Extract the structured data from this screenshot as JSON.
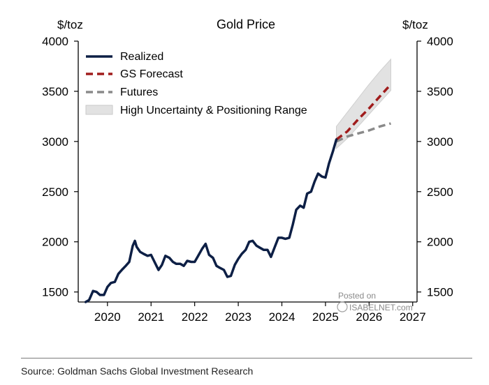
{
  "chart_data": {
    "type": "line",
    "title": "Gold Price",
    "ylabel_left": "$/toz",
    "ylabel_right": "$/toz",
    "ylim": [
      1400,
      4000
    ],
    "yticks": [
      1500,
      2000,
      2500,
      3000,
      3500,
      4000
    ],
    "xlim": [
      2019.33,
      2027.1
    ],
    "xticks": [
      2020,
      2021,
      2022,
      2023,
      2024,
      2025,
      2026,
      2027
    ],
    "xtick_labels": [
      "2020",
      "2021",
      "2022",
      "2023",
      "2024",
      "2025",
      "2026",
      "2027"
    ],
    "legend": {
      "position": "top-left",
      "entries": [
        {
          "label": "Realized",
          "style": "solid",
          "color": "#0d1f45"
        },
        {
          "label": "GS Forecast",
          "style": "dashed",
          "color": "#a01c1c"
        },
        {
          "label": "Futures",
          "style": "dashed",
          "color": "#8a8a8a"
        },
        {
          "label": "High Uncertainty & Positioning Range",
          "style": "band",
          "color": "#e2e2e2"
        }
      ]
    },
    "series": [
      {
        "name": "Realized",
        "color": "#0d1f45",
        "x": [
          2019.5,
          2019.58,
          2019.67,
          2019.75,
          2019.83,
          2019.92,
          2020.0,
          2020.08,
          2020.17,
          2020.25,
          2020.33,
          2020.42,
          2020.5,
          2020.58,
          2020.63,
          2020.67,
          2020.75,
          2020.83,
          2020.92,
          2021.0,
          2021.08,
          2021.17,
          2021.25,
          2021.33,
          2021.42,
          2021.5,
          2021.58,
          2021.67,
          2021.75,
          2021.83,
          2021.92,
          2022.0,
          2022.08,
          2022.17,
          2022.25,
          2022.33,
          2022.42,
          2022.5,
          2022.58,
          2022.67,
          2022.75,
          2022.83,
          2022.92,
          2023.0,
          2023.08,
          2023.17,
          2023.25,
          2023.33,
          2023.42,
          2023.5,
          2023.58,
          2023.67,
          2023.75,
          2023.83,
          2023.92,
          2024.0,
          2024.08,
          2024.17,
          2024.25,
          2024.33,
          2024.42,
          2024.5,
          2024.58,
          2024.67,
          2024.75,
          2024.83,
          2024.92,
          2025.0,
          2025.08,
          2025.17,
          2025.25
        ],
        "values": [
          1400,
          1420,
          1510,
          1500,
          1470,
          1470,
          1550,
          1590,
          1600,
          1680,
          1720,
          1760,
          1800,
          1960,
          2010,
          1950,
          1900,
          1880,
          1860,
          1870,
          1800,
          1720,
          1770,
          1860,
          1840,
          1800,
          1780,
          1780,
          1760,
          1810,
          1800,
          1800,
          1860,
          1930,
          1980,
          1870,
          1840,
          1760,
          1740,
          1720,
          1650,
          1660,
          1770,
          1830,
          1880,
          1920,
          2000,
          2010,
          1960,
          1940,
          1920,
          1920,
          1850,
          1940,
          2040,
          2040,
          2030,
          2040,
          2170,
          2320,
          2360,
          2340,
          2480,
          2500,
          2600,
          2680,
          2650,
          2640,
          2780,
          2900,
          3020
        ]
      },
      {
        "name": "GS Forecast",
        "color": "#a01c1c",
        "x": [
          2025.25,
          2025.5,
          2025.75,
          2026.0,
          2026.25,
          2026.5
        ],
        "values": [
          3020,
          3100,
          3220,
          3330,
          3450,
          3570
        ]
      },
      {
        "name": "Futures",
        "color": "#8a8a8a",
        "x": [
          2025.25,
          2025.5,
          2025.75,
          2026.0,
          2026.25,
          2026.5
        ],
        "values": [
          3000,
          3050,
          3080,
          3110,
          3150,
          3180
        ]
      }
    ],
    "band": {
      "name": "High Uncertainty & Positioning Range",
      "x": [
        2025.25,
        2025.5,
        2025.75,
        2026.0,
        2026.25,
        2026.5
      ],
      "upper": [
        3150,
        3290,
        3430,
        3570,
        3700,
        3820
      ],
      "lower": [
        2930,
        3030,
        3150,
        3270,
        3390,
        3510
      ]
    }
  },
  "watermark": {
    "line1": "Posted on",
    "line2": "ISABELNET.com"
  },
  "source": "Source: Goldman Sachs Global Investment Research"
}
